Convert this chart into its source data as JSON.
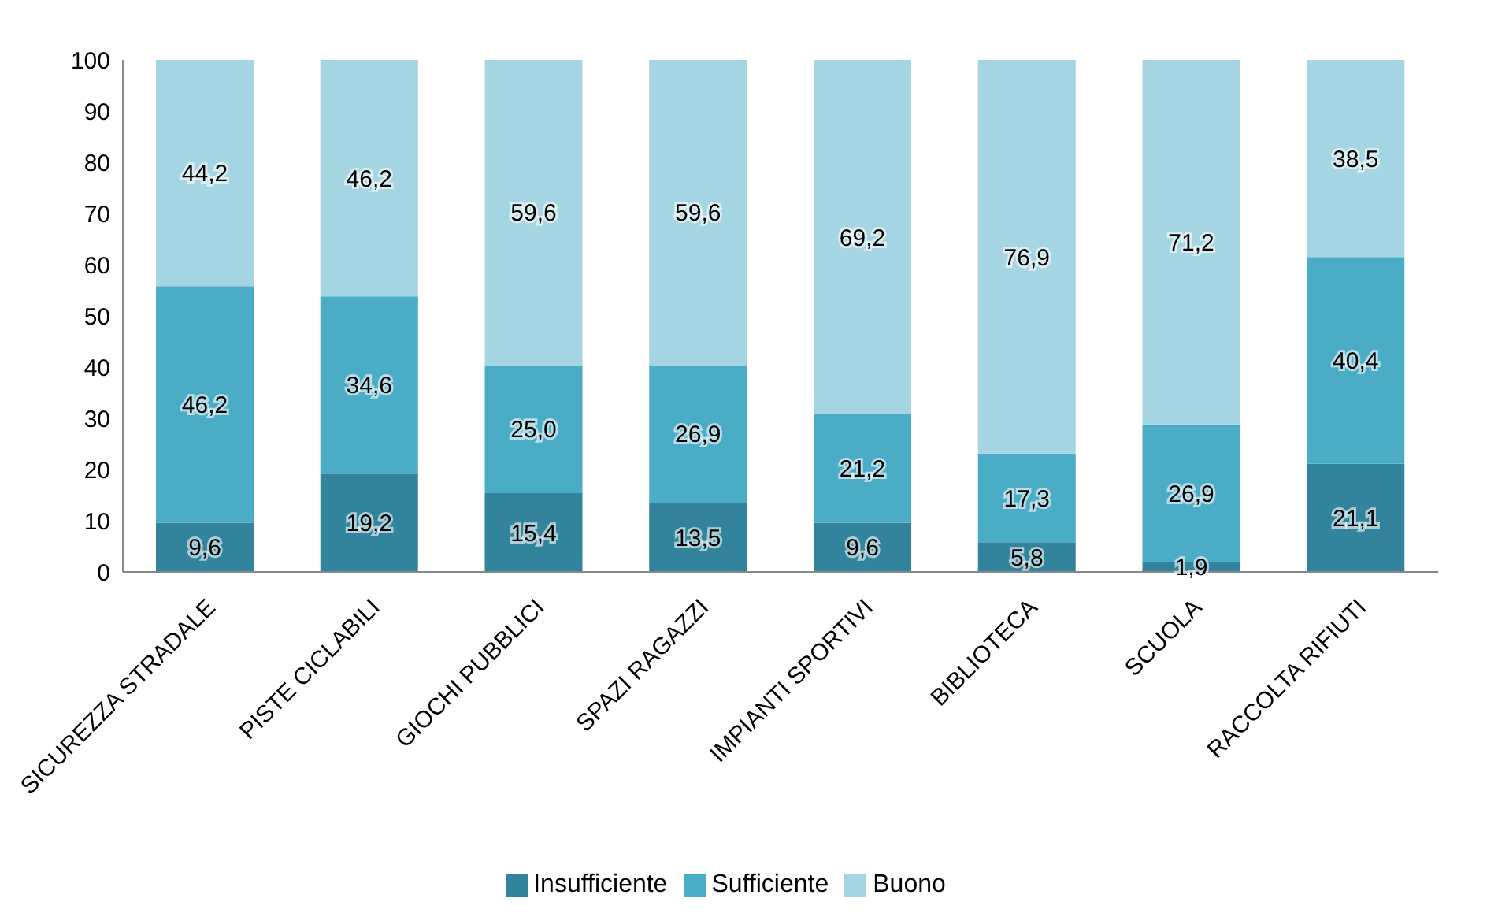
{
  "chart_data": {
    "type": "bar",
    "stacked": true,
    "categories": [
      "SICUREZZA STRADALE",
      "PISTE CICLABILI",
      "GIOCHI PUBBLICI",
      "SPAZI RAGAZZI",
      "IMPIANTI SPORTIVI",
      "BIBLIOTECA",
      "SCUOLA",
      "RACCOLTA RIFIUTI"
    ],
    "series": [
      {
        "name": "Insufficiente",
        "color": "#31849b",
        "values": [
          9.6,
          19.2,
          15.4,
          13.5,
          9.6,
          5.8,
          1.9,
          21.1
        ],
        "value_labels": [
          "9,6",
          "19,2",
          "15,4",
          "13,5",
          "9,6",
          "5,8",
          "1,9",
          "21,1"
        ]
      },
      {
        "name": "Sufficiente",
        "color": "#4bacc6",
        "values": [
          46.2,
          34.6,
          25.0,
          26.9,
          21.2,
          17.3,
          26.9,
          40.4
        ],
        "value_labels": [
          "46,2",
          "34,6",
          "25,0",
          "26,9",
          "21,2",
          "17,3",
          "26,9",
          "40,4"
        ]
      },
      {
        "name": "Buono",
        "color": "#a5d5e2",
        "values": [
          44.2,
          46.2,
          59.6,
          59.6,
          69.2,
          76.9,
          71.2,
          38.5
        ],
        "value_labels": [
          "44,2",
          "46,2",
          "59,6",
          "59,6",
          "69,2",
          "76,9",
          "71,2",
          "38,5"
        ]
      }
    ],
    "ylim": [
      0,
      100
    ],
    "yticks": [
      0,
      10,
      20,
      30,
      40,
      50,
      60,
      70,
      80,
      90,
      100
    ],
    "grid": false,
    "legend": "bottom"
  }
}
